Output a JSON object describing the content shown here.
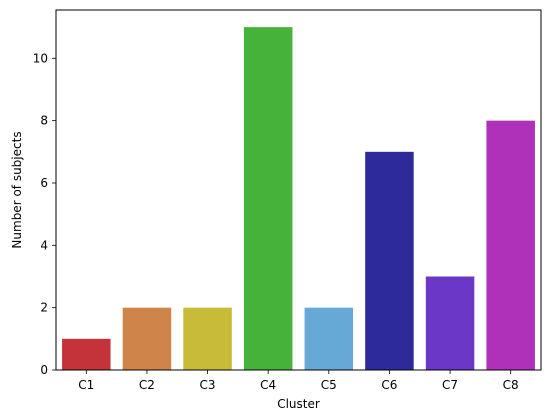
{
  "chart_data": {
    "type": "bar",
    "categories": [
      "C1",
      "C2",
      "C3",
      "C4",
      "C5",
      "C6",
      "C7",
      "C8"
    ],
    "values": [
      1,
      2,
      2,
      11,
      2,
      7,
      3,
      8
    ],
    "colors": [
      "#c33339",
      "#cf8549",
      "#c8bb37",
      "#47b23a",
      "#67a9d6",
      "#2d2b9c",
      "#6a37c6",
      "#b031b9"
    ],
    "title": "",
    "xlabel": "Cluster",
    "ylabel": "Number of subjects",
    "ylim": [
      0,
      11.55
    ],
    "yticks": [
      0,
      2,
      4,
      6,
      8,
      10
    ],
    "grid": false,
    "legend": "none"
  }
}
